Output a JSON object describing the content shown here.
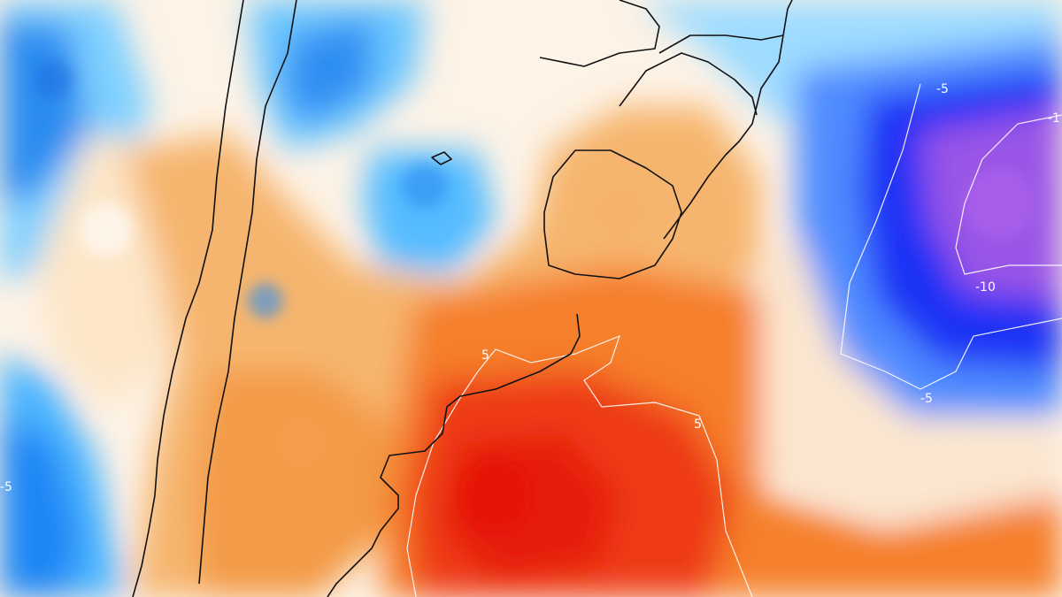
{
  "map": {
    "type": "temperature anomaly field",
    "region": "southern South America and adjacent South Atlantic",
    "contour_labels": [
      {
        "text": "-5",
        "id": "label-minus5-ne"
      },
      {
        "text": "-10",
        "id": "label-minus10-east"
      },
      {
        "text": "-5",
        "id": "label-minus5-se"
      },
      {
        "text": "5",
        "id": "label-5-center"
      },
      {
        "text": "5",
        "id": "label-5-right"
      },
      {
        "text": "-5",
        "id": "label-minus5-west"
      },
      {
        "text": "-1",
        "id": "label-minus1-edge"
      }
    ],
    "colors": {
      "deep_purple": "#9b4fe0",
      "blue": "#1a3cff",
      "light_blue": "#5fc2ff",
      "pale_blue": "#cdeeff",
      "neutral": "#ffffff",
      "pale_orange": "#fbe0bf",
      "orange": "#f7a14a",
      "deep_orange": "#f26a1c",
      "red": "#ea2a12"
    }
  }
}
